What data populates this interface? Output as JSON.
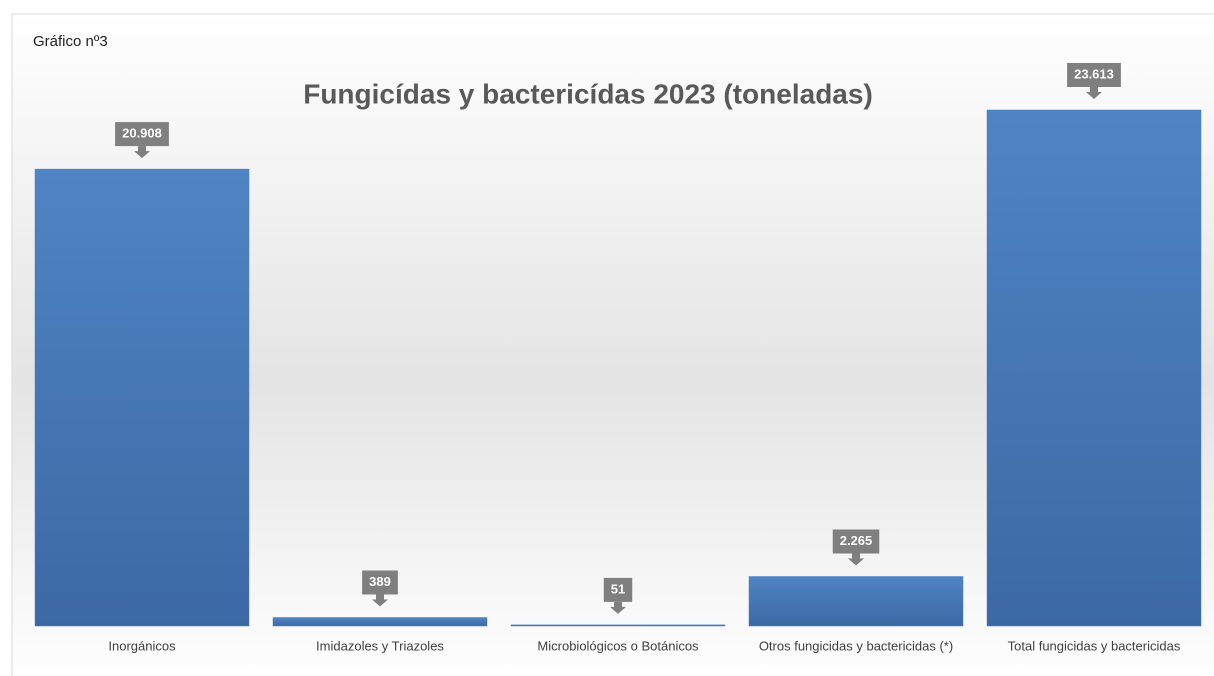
{
  "chart_data": {
    "type": "bar",
    "subtitle": "Gráfico nº3",
    "title": "Fungicídas y bactericídas  2023 (toneladas)",
    "categories": [
      "Inorgánicos",
      "Imidazoles y Triazoles",
      "Microbiológicos o Botánicos",
      "Otros fungicidas y bactericidas (*)",
      "Total fungicidas y bactericidas"
    ],
    "values": [
      20908,
      389,
      51,
      2265,
      23613
    ],
    "value_labels": [
      "20.908",
      "389",
      "51",
      "2.265",
      "23.613"
    ],
    "color": "#4a7ebf"
  }
}
